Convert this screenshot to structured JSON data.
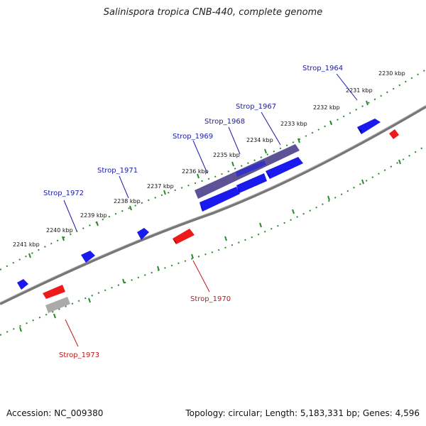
{
  "title": "Salinispora tropica CNB-440, complete genome",
  "footer": {
    "accession": "Accession: NC_009380",
    "stats": "Topology: circular; Length: 5,183,331 bp; Genes: 4,596"
  },
  "colors": {
    "forward": "#1a1aee",
    "reverse": "#ee1a1a",
    "selected": "#4a3f8a",
    "pseudo": "#aaaaaa",
    "ruler_tick": "#2a8a2a",
    "backbone": "#777777",
    "forward_label": "#1a1aaa",
    "reverse_label": "#bb1a1a"
  },
  "kbp_labels": [
    "2230 kbp",
    "2231 kbp",
    "2232 kbp",
    "2233 kbp",
    "2234 kbp",
    "2235 kbp",
    "2236 kbp",
    "2237 kbp",
    "2238 kbp",
    "2239 kbp",
    "2240 kbp",
    "2241 kbp"
  ],
  "gene_labels": {
    "g1964": "Strop_1964",
    "g1967": "Strop_1967",
    "g1968": "Strop_1968",
    "g1969": "Strop_1969",
    "g1970": "Strop_1970",
    "g1971": "Strop_1971",
    "g1972": "Strop_1972",
    "g1973": "Strop_1973"
  }
}
